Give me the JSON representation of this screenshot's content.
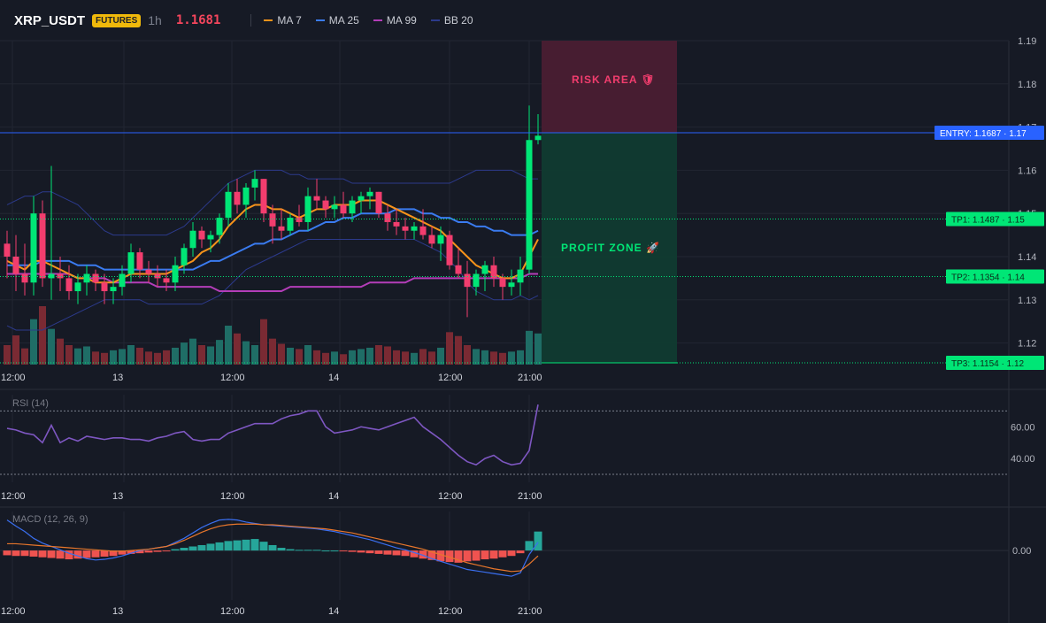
{
  "header": {
    "symbol": "XRP_USDT",
    "badge": "FUTURES",
    "timeframe": "1h",
    "last_price": "1.1681",
    "indicators": [
      {
        "label": "MA 7",
        "color": "#f7931a"
      },
      {
        "label": "MA 25",
        "color": "#3a7bf0"
      },
      {
        "label": "MA 99",
        "color": "#b33db8"
      },
      {
        "label": "BB 20",
        "color": "#2c3a8c"
      }
    ]
  },
  "colors": {
    "background": "#161a25",
    "up": "#00e676",
    "down": "#f23d6e",
    "volume_up": "#1f6d66",
    "volume_down": "#7a2a33",
    "entry": "#2962ff",
    "target": "#00e676",
    "risk_fill": "#4a1d31",
    "profit_fill": "#103b30",
    "rsi": "#7e57c2",
    "macd": "#3a6ff0",
    "signal": "#e8762b",
    "hist_up": "#26a69a",
    "hist_down": "#ef5350"
  },
  "chart_data": {
    "type": "candlestick",
    "y_axis": {
      "ticks": [
        "1.12",
        "1.13",
        "1.14",
        "1.15",
        "1.16",
        "1.17",
        "1.18",
        "1.19"
      ],
      "ylim": [
        1.115,
        1.19
      ]
    },
    "x_axis": {
      "ticks": [
        {
          "label": "12:00",
          "index": 1
        },
        {
          "label": "13",
          "index": 13
        },
        {
          "label": "12:00",
          "index": 25
        },
        {
          "label": "14",
          "index": 37
        },
        {
          "label": "12:00",
          "index": 49
        },
        {
          "label": "21:00",
          "index": 58
        }
      ]
    },
    "candles": [
      {
        "o": 1.143,
        "h": 1.146,
        "l": 1.135,
        "c": 1.14
      },
      {
        "o": 1.14,
        "h": 1.145,
        "l": 1.132,
        "c": 1.136
      },
      {
        "o": 1.136,
        "h": 1.143,
        "l": 1.131,
        "c": 1.134
      },
      {
        "o": 1.134,
        "h": 1.154,
        "l": 1.131,
        "c": 1.15
      },
      {
        "o": 1.15,
        "h": 1.153,
        "l": 1.133,
        "c": 1.135
      },
      {
        "o": 1.135,
        "h": 1.161,
        "l": 1.13,
        "c": 1.136
      },
      {
        "o": 1.136,
        "h": 1.14,
        "l": 1.132,
        "c": 1.135
      },
      {
        "o": 1.135,
        "h": 1.138,
        "l": 1.13,
        "c": 1.132
      },
      {
        "o": 1.132,
        "h": 1.136,
        "l": 1.129,
        "c": 1.134
      },
      {
        "o": 1.134,
        "h": 1.138,
        "l": 1.131,
        "c": 1.136
      },
      {
        "o": 1.136,
        "h": 1.137,
        "l": 1.132,
        "c": 1.134
      },
      {
        "o": 1.134,
        "h": 1.136,
        "l": 1.129,
        "c": 1.132
      },
      {
        "o": 1.132,
        "h": 1.135,
        "l": 1.129,
        "c": 1.133
      },
      {
        "o": 1.133,
        "h": 1.138,
        "l": 1.131,
        "c": 1.136
      },
      {
        "o": 1.136,
        "h": 1.143,
        "l": 1.134,
        "c": 1.141
      },
      {
        "o": 1.141,
        "h": 1.142,
        "l": 1.135,
        "c": 1.137
      },
      {
        "o": 1.137,
        "h": 1.139,
        "l": 1.134,
        "c": 1.136
      },
      {
        "o": 1.136,
        "h": 1.138,
        "l": 1.133,
        "c": 1.135
      },
      {
        "o": 1.135,
        "h": 1.137,
        "l": 1.132,
        "c": 1.134
      },
      {
        "o": 1.134,
        "h": 1.14,
        "l": 1.132,
        "c": 1.138
      },
      {
        "o": 1.138,
        "h": 1.143,
        "l": 1.136,
        "c": 1.142
      },
      {
        "o": 1.142,
        "h": 1.148,
        "l": 1.14,
        "c": 1.146
      },
      {
        "o": 1.146,
        "h": 1.147,
        "l": 1.142,
        "c": 1.144
      },
      {
        "o": 1.144,
        "h": 1.146,
        "l": 1.141,
        "c": 1.145
      },
      {
        "o": 1.145,
        "h": 1.15,
        "l": 1.143,
        "c": 1.149
      },
      {
        "o": 1.149,
        "h": 1.157,
        "l": 1.147,
        "c": 1.155
      },
      {
        "o": 1.155,
        "h": 1.158,
        "l": 1.15,
        "c": 1.152
      },
      {
        "o": 1.152,
        "h": 1.157,
        "l": 1.149,
        "c": 1.156
      },
      {
        "o": 1.156,
        "h": 1.16,
        "l": 1.153,
        "c": 1.158
      },
      {
        "o": 1.158,
        "h": 1.158,
        "l": 1.148,
        "c": 1.15
      },
      {
        "o": 1.15,
        "h": 1.152,
        "l": 1.143,
        "c": 1.147
      },
      {
        "o": 1.147,
        "h": 1.151,
        "l": 1.144,
        "c": 1.146
      },
      {
        "o": 1.146,
        "h": 1.15,
        "l": 1.145,
        "c": 1.149
      },
      {
        "o": 1.149,
        "h": 1.152,
        "l": 1.147,
        "c": 1.148
      },
      {
        "o": 1.148,
        "h": 1.156,
        "l": 1.146,
        "c": 1.154
      },
      {
        "o": 1.154,
        "h": 1.158,
        "l": 1.151,
        "c": 1.153
      },
      {
        "o": 1.153,
        "h": 1.154,
        "l": 1.149,
        "c": 1.151
      },
      {
        "o": 1.151,
        "h": 1.154,
        "l": 1.149,
        "c": 1.152
      },
      {
        "o": 1.152,
        "h": 1.155,
        "l": 1.149,
        "c": 1.15
      },
      {
        "o": 1.15,
        "h": 1.154,
        "l": 1.148,
        "c": 1.153
      },
      {
        "o": 1.153,
        "h": 1.155,
        "l": 1.15,
        "c": 1.154
      },
      {
        "o": 1.154,
        "h": 1.156,
        "l": 1.151,
        "c": 1.155
      },
      {
        "o": 1.155,
        "h": 1.155,
        "l": 1.149,
        "c": 1.15
      },
      {
        "o": 1.15,
        "h": 1.152,
        "l": 1.146,
        "c": 1.148
      },
      {
        "o": 1.148,
        "h": 1.151,
        "l": 1.145,
        "c": 1.147
      },
      {
        "o": 1.147,
        "h": 1.149,
        "l": 1.144,
        "c": 1.146
      },
      {
        "o": 1.146,
        "h": 1.148,
        "l": 1.144,
        "c": 1.147
      },
      {
        "o": 1.147,
        "h": 1.151,
        "l": 1.144,
        "c": 1.145
      },
      {
        "o": 1.145,
        "h": 1.147,
        "l": 1.142,
        "c": 1.143
      },
      {
        "o": 1.143,
        "h": 1.147,
        "l": 1.139,
        "c": 1.145
      },
      {
        "o": 1.145,
        "h": 1.146,
        "l": 1.137,
        "c": 1.138
      },
      {
        "o": 1.138,
        "h": 1.142,
        "l": 1.135,
        "c": 1.136
      },
      {
        "o": 1.136,
        "h": 1.139,
        "l": 1.126,
        "c": 1.133
      },
      {
        "o": 1.133,
        "h": 1.137,
        "l": 1.131,
        "c": 1.136
      },
      {
        "o": 1.136,
        "h": 1.139,
        "l": 1.132,
        "c": 1.138
      },
      {
        "o": 1.138,
        "h": 1.14,
        "l": 1.133,
        "c": 1.135
      },
      {
        "o": 1.135,
        "h": 1.136,
        "l": 1.13,
        "c": 1.133
      },
      {
        "o": 1.133,
        "h": 1.137,
        "l": 1.131,
        "c": 1.134
      },
      {
        "o": 1.134,
        "h": 1.14,
        "l": 1.131,
        "c": 1.137
      },
      {
        "o": 1.137,
        "h": 1.175,
        "l": 1.136,
        "c": 1.167
      },
      {
        "o": 1.167,
        "h": 1.173,
        "l": 1.166,
        "c": 1.168
      }
    ],
    "volume": [
      30,
      45,
      25,
      70,
      90,
      55,
      40,
      30,
      25,
      28,
      20,
      18,
      22,
      24,
      30,
      26,
      20,
      18,
      22,
      26,
      34,
      40,
      30,
      28,
      38,
      60,
      48,
      36,
      30,
      70,
      40,
      32,
      26,
      24,
      30,
      22,
      18,
      20,
      16,
      22,
      24,
      26,
      30,
      28,
      22,
      20,
      18,
      24,
      20,
      26,
      50,
      44,
      30,
      24,
      22,
      20,
      18,
      20,
      22,
      52,
      48
    ],
    "ma7": [
      1.139,
      1.138,
      1.137,
      1.139,
      1.139,
      1.138,
      1.137,
      1.136,
      1.135,
      1.135,
      1.134,
      1.134,
      1.134,
      1.135,
      1.136,
      1.136,
      1.136,
      1.136,
      1.136,
      1.137,
      1.138,
      1.139,
      1.141,
      1.142,
      1.144,
      1.147,
      1.149,
      1.151,
      1.152,
      1.152,
      1.151,
      1.151,
      1.15,
      1.149,
      1.15,
      1.151,
      1.151,
      1.152,
      1.152,
      1.152,
      1.153,
      1.153,
      1.153,
      1.152,
      1.151,
      1.15,
      1.149,
      1.148,
      1.147,
      1.146,
      1.144,
      1.142,
      1.14,
      1.138,
      1.137,
      1.136,
      1.135,
      1.135,
      1.136,
      1.14,
      1.144
    ],
    "ma25": [
      1.138,
      1.138,
      1.138,
      1.138,
      1.139,
      1.139,
      1.139,
      1.139,
      1.138,
      1.138,
      1.138,
      1.137,
      1.137,
      1.137,
      1.137,
      1.137,
      1.137,
      1.137,
      1.137,
      1.137,
      1.137,
      1.137,
      1.138,
      1.139,
      1.139,
      1.14,
      1.141,
      1.142,
      1.143,
      1.143,
      1.144,
      1.144,
      1.145,
      1.146,
      1.146,
      1.147,
      1.148,
      1.148,
      1.149,
      1.149,
      1.15,
      1.15,
      1.15,
      1.15,
      1.151,
      1.151,
      1.151,
      1.15,
      1.15,
      1.149,
      1.149,
      1.148,
      1.148,
      1.147,
      1.147,
      1.146,
      1.146,
      1.145,
      1.145,
      1.145,
      1.146
    ],
    "ma99": [
      1.136,
      1.136,
      1.136,
      1.136,
      1.136,
      1.136,
      1.136,
      1.136,
      1.135,
      1.135,
      1.135,
      1.135,
      1.134,
      1.134,
      1.134,
      1.134,
      1.134,
      1.133,
      1.133,
      1.133,
      1.133,
      1.133,
      1.133,
      1.133,
      1.132,
      1.132,
      1.132,
      1.132,
      1.132,
      1.132,
      1.132,
      1.132,
      1.133,
      1.133,
      1.133,
      1.133,
      1.133,
      1.133,
      1.133,
      1.133,
      1.133,
      1.134,
      1.134,
      1.134,
      1.134,
      1.134,
      1.135,
      1.135,
      1.135,
      1.135,
      1.135,
      1.135,
      1.135,
      1.135,
      1.135,
      1.135,
      1.135,
      1.135,
      1.135,
      1.136,
      1.136
    ],
    "bb_upper": [
      1.152,
      1.153,
      1.154,
      1.154,
      1.155,
      1.155,
      1.154,
      1.153,
      1.152,
      1.15,
      1.148,
      1.146,
      1.145,
      1.145,
      1.145,
      1.145,
      1.145,
      1.145,
      1.145,
      1.146,
      1.147,
      1.149,
      1.151,
      1.153,
      1.155,
      1.157,
      1.158,
      1.159,
      1.16,
      1.16,
      1.16,
      1.16,
      1.159,
      1.159,
      1.158,
      1.158,
      1.158,
      1.158,
      1.158,
      1.157,
      1.157,
      1.157,
      1.157,
      1.157,
      1.157,
      1.157,
      1.157,
      1.157,
      1.157,
      1.157,
      1.157,
      1.158,
      1.159,
      1.16,
      1.16,
      1.16,
      1.16,
      1.16,
      1.159,
      1.158,
      1.158
    ],
    "bb_lower": [
      1.124,
      1.123,
      1.123,
      1.123,
      1.123,
      1.124,
      1.125,
      1.126,
      1.127,
      1.128,
      1.129,
      1.13,
      1.13,
      1.13,
      1.13,
      1.13,
      1.129,
      1.129,
      1.129,
      1.129,
      1.129,
      1.129,
      1.129,
      1.13,
      1.131,
      1.133,
      1.135,
      1.137,
      1.138,
      1.139,
      1.14,
      1.141,
      1.142,
      1.143,
      1.144,
      1.144,
      1.144,
      1.144,
      1.144,
      1.144,
      1.144,
      1.144,
      1.144,
      1.144,
      1.144,
      1.144,
      1.144,
      1.143,
      1.142,
      1.141,
      1.139,
      1.137,
      1.134,
      1.132,
      1.131,
      1.13,
      1.13,
      1.13,
      1.131,
      1.13,
      1.131
    ],
    "levels": {
      "entry": {
        "label": "ENTRY: 1.1687 · 1.17",
        "value": 1.1687
      },
      "tp1": {
        "label": "TP1: 1.1487 · 1.15",
        "value": 1.1487
      },
      "tp2": {
        "label": "TP2: 1.1354 · 1.14",
        "value": 1.1354
      },
      "tp3": {
        "label": "TP3: 1.1154 · 1.12",
        "value": 1.1154
      },
      "risk_top": 1.19
    },
    "zones": {
      "risk_label": "RISK AREA 🛡",
      "profit_label": "PROFIT ZONE 🚀"
    },
    "rsi": {
      "label": "RSI (14)",
      "ticks": [
        "60.00",
        "40.00"
      ],
      "ylim": [
        25,
        78
      ],
      "values": [
        59,
        58,
        56,
        55,
        50,
        61,
        50,
        53,
        51,
        54,
        53,
        52,
        53,
        53,
        52,
        52,
        51,
        53,
        54,
        56,
        57,
        52,
        51,
        52,
        52,
        56,
        58,
        60,
        62,
        62,
        62,
        65,
        67,
        68,
        70,
        70,
        60,
        56,
        57,
        58,
        60,
        59,
        58,
        60,
        62,
        64,
        66,
        60,
        56,
        52,
        47,
        42,
        38,
        36,
        40,
        42,
        38,
        36,
        37,
        45,
        74
      ]
    },
    "macd": {
      "label": "MACD (12, 26, 9)",
      "ticks": [
        "0.00"
      ],
      "ylim": [
        -0.006,
        0.0055
      ],
      "macd_line": [
        0.0045,
        0.0036,
        0.0028,
        0.0018,
        0.0011,
        0.0006,
        0.0001,
        -0.0004,
        -0.0008,
        -0.0012,
        -0.0014,
        -0.0013,
        -0.0011,
        -0.0008,
        -0.0004,
        0,
        0.0002,
        0.0004,
        0.0006,
        0.0012,
        0.0018,
        0.0026,
        0.0034,
        0.004,
        0.0045,
        0.0046,
        0.0045,
        0.0042,
        0.004,
        0.0038,
        0.0037,
        0.0036,
        0.0035,
        0.0034,
        0.0033,
        0.0032,
        0.003,
        0.0028,
        0.0025,
        0.0022,
        0.0019,
        0.0016,
        0.0012,
        0.0008,
        0.0004,
        0.0001,
        -0.0003,
        -0.0007,
        -0.0012,
        -0.0016,
        -0.002,
        -0.0024,
        -0.0028,
        -0.003,
        -0.0032,
        -0.0034,
        -0.0036,
        -0.0038,
        -0.0033,
        -0.0006,
        0.0012
      ],
      "signal_line": [
        0.001,
        0.001,
        0.0009,
        0.0008,
        0.0007,
        0.0006,
        0.0005,
        0.0004,
        0.0003,
        0.0002,
        0.0001,
        0,
        -0.0001,
        -0.0001,
        0,
        0.0001,
        0.0002,
        0.0004,
        0.0006,
        0.001,
        0.0015,
        0.0021,
        0.0027,
        0.0032,
        0.0036,
        0.0038,
        0.0039,
        0.0039,
        0.0039,
        0.0038,
        0.0038,
        0.0037,
        0.0036,
        0.0035,
        0.0034,
        0.0033,
        0.0032,
        0.003,
        0.0028,
        0.0026,
        0.0023,
        0.002,
        0.0017,
        0.0014,
        0.0011,
        0.0008,
        0.0005,
        0.0002,
        -0.0002,
        -0.0006,
        -0.001,
        -0.0014,
        -0.0018,
        -0.0021,
        -0.0024,
        -0.0027,
        -0.0029,
        -0.0031,
        -0.003,
        -0.002,
        -0.0008
      ],
      "histogram": [
        -0.0007,
        -0.0008,
        -0.0008,
        -0.0009,
        -0.001,
        -0.0011,
        -0.0012,
        -0.0013,
        -0.0012,
        -0.0011,
        -0.001,
        -0.0009,
        -0.0008,
        -0.0006,
        -0.0005,
        -0.0004,
        -0.0003,
        -0.0002,
        -0.0001,
        0.0002,
        0.0004,
        0.0006,
        0.0008,
        0.001,
        0.0012,
        0.0014,
        0.0015,
        0.0016,
        0.0017,
        0.0013,
        0.0008,
        0.0004,
        0.0002,
        0.0001,
        0.0001,
        0.0001,
        0,
        0,
        -0.0001,
        -0.0002,
        -0.0003,
        -0.0004,
        -0.0005,
        -0.0006,
        -0.0007,
        -0.0008,
        -0.001,
        -0.0012,
        -0.0014,
        -0.0016,
        -0.0017,
        -0.0018,
        -0.0016,
        -0.0015,
        -0.0013,
        -0.0012,
        -0.001,
        -0.0008,
        -0.0004,
        0.0014,
        0.0028
      ]
    }
  }
}
